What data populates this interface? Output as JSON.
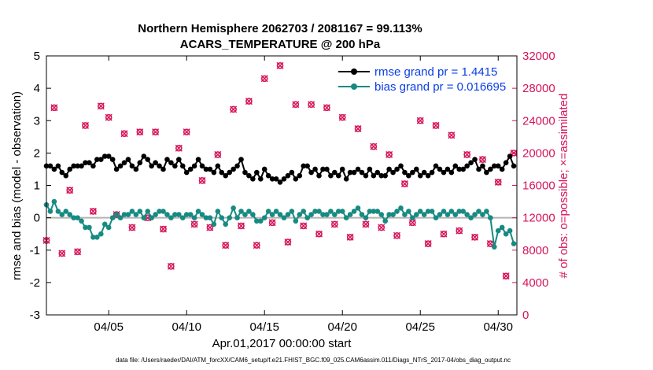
{
  "colors": {
    "rmse": "#000000",
    "bias": "#178a82",
    "obs": "#d6145a",
    "legend_text": "#0a3fe6",
    "zero_line": "#b3b3b3"
  },
  "chart_data": {
    "type": "line",
    "title": [
      "Northern Hemisphere 2062703 / 2081167 = 99.113%",
      "ACARS_TEMPERATURE @ 200 hPa"
    ],
    "xlabel": "Apr.01,2017 00:00:00 start",
    "ylabel": "rmse and bias (model - observation)",
    "y2label": "# of obs: o=possible; ×=assimilated",
    "footer": "data file: /Users/raeder/DAI/ATM_forcXX/CAM6_setup/f.e21.FHIST_BGC.f09_025.CAM6assim.011/Diags_NTrS_2017-04/obs_diag_output.nc",
    "xlim": [
      1.0,
      31.2
    ],
    "ylim": [
      -3,
      5
    ],
    "y2lim": [
      0,
      32000
    ],
    "x_ticks": [
      5,
      10,
      15,
      20,
      25,
      30
    ],
    "x_tick_labels": [
      "04/05",
      "04/10",
      "04/15",
      "04/20",
      "04/25",
      "04/30"
    ],
    "y_ticks": [
      -3,
      -2,
      -1,
      0,
      1,
      2,
      3,
      4,
      5
    ],
    "y2_ticks": [
      0,
      4000,
      8000,
      12000,
      16000,
      20000,
      24000,
      28000,
      32000
    ],
    "y2_tick_labels": [
      "0",
      "4000",
      "8000",
      "12000",
      "16000",
      "20000",
      "24000",
      "28000",
      "32000"
    ],
    "legend": [
      {
        "name": "rmse grand pr = 1.4415",
        "series": "rmse"
      },
      {
        "name": "bias grand pr = 0.016695",
        "series": "bias"
      }
    ],
    "x": [
      1.0,
      1.25,
      1.5,
      1.75,
      2.0,
      2.25,
      2.5,
      2.75,
      3.0,
      3.25,
      3.5,
      3.75,
      4.0,
      4.25,
      4.5,
      4.75,
      5.0,
      5.25,
      5.5,
      5.75,
      6.0,
      6.25,
      6.5,
      6.75,
      7.0,
      7.25,
      7.5,
      7.75,
      8.0,
      8.25,
      8.5,
      8.75,
      9.0,
      9.25,
      9.5,
      9.75,
      10.0,
      10.25,
      10.5,
      10.75,
      11.0,
      11.25,
      11.5,
      11.75,
      12.0,
      12.25,
      12.5,
      12.75,
      13.0,
      13.25,
      13.5,
      13.75,
      14.0,
      14.25,
      14.5,
      14.75,
      15.0,
      15.25,
      15.5,
      15.75,
      16.0,
      16.25,
      16.5,
      16.75,
      17.0,
      17.25,
      17.5,
      17.75,
      18.0,
      18.25,
      18.5,
      18.75,
      19.0,
      19.25,
      19.5,
      19.75,
      20.0,
      20.25,
      20.5,
      20.75,
      21.0,
      21.25,
      21.5,
      21.75,
      22.0,
      22.25,
      22.5,
      22.75,
      23.0,
      23.25,
      23.5,
      23.75,
      24.0,
      24.25,
      24.5,
      24.75,
      25.0,
      25.25,
      25.5,
      25.75,
      26.0,
      26.25,
      26.5,
      26.75,
      27.0,
      27.25,
      27.5,
      27.75,
      28.0,
      28.25,
      28.5,
      28.75,
      29.0,
      29.25,
      29.5,
      29.75,
      30.0,
      30.25,
      30.5,
      30.75,
      31.0
    ],
    "series": [
      {
        "name": "rmse",
        "marker": "filled-circle",
        "values": [
          1.6,
          1.6,
          1.5,
          1.6,
          1.4,
          1.3,
          1.5,
          1.6,
          1.6,
          1.6,
          1.7,
          1.7,
          1.6,
          1.8,
          1.8,
          1.9,
          1.9,
          1.8,
          1.5,
          1.6,
          1.7,
          1.8,
          1.6,
          1.5,
          1.7,
          1.9,
          1.8,
          1.6,
          1.7,
          1.6,
          1.5,
          1.8,
          1.7,
          1.6,
          1.8,
          1.6,
          1.4,
          1.5,
          1.6,
          1.8,
          1.6,
          1.5,
          1.5,
          1.4,
          1.6,
          1.4,
          1.3,
          1.4,
          1.5,
          1.6,
          1.8,
          1.4,
          1.3,
          1.2,
          1.4,
          1.2,
          1.5,
          1.3,
          1.2,
          1.2,
          1.1,
          1.2,
          1.3,
          1.4,
          1.2,
          1.3,
          1.6,
          1.6,
          1.4,
          1.5,
          1.3,
          1.5,
          1.5,
          1.3,
          1.4,
          1.3,
          1.5,
          1.2,
          1.4,
          1.4,
          1.5,
          1.4,
          1.3,
          1.5,
          1.3,
          1.4,
          1.3,
          1.3,
          1.5,
          1.4,
          1.5,
          1.6,
          1.4,
          1.3,
          1.4,
          1.5,
          1.3,
          1.4,
          1.3,
          1.4,
          1.6,
          1.5,
          1.4,
          1.5,
          1.4,
          1.6,
          1.5,
          1.5,
          1.6,
          1.7,
          1.8,
          1.5,
          1.6,
          1.4,
          1.5,
          1.6,
          1.6,
          1.5,
          1.7,
          1.9,
          1.6
        ]
      },
      {
        "name": "bias",
        "marker": "filled-circle",
        "values": [
          0.4,
          0.2,
          0.5,
          0.2,
          0.1,
          0.2,
          0.1,
          0.0,
          0.0,
          -0.1,
          -0.3,
          -0.3,
          -0.6,
          -0.6,
          -0.5,
          -0.2,
          -0.3,
          0.0,
          0.1,
          0.0,
          0.1,
          0.1,
          0.2,
          0.1,
          0.2,
          0.0,
          0.2,
          0.0,
          0.1,
          0.2,
          0.2,
          0.1,
          0.0,
          0.1,
          0.1,
          0.0,
          0.1,
          0.1,
          0.0,
          0.2,
          0.1,
          0.0,
          0.0,
          -0.2,
          0.2,
          0.0,
          -0.2,
          0.0,
          0.3,
          0.0,
          0.2,
          0.1,
          0.2,
          0.1,
          -0.1,
          -0.1,
          0.0,
          0.2,
          0.1,
          0.2,
          0.1,
          0.0,
          0.1,
          0.2,
          -0.1,
          0.1,
          0.2,
          0.0,
          0.1,
          0.2,
          0.2,
          0.1,
          0.1,
          0.2,
          0.1,
          0.2,
          0.2,
          0.0,
          0.1,
          0.2,
          0.3,
          0.1,
          0.0,
          0.2,
          0.2,
          0.2,
          0.1,
          -0.1,
          0.1,
          0.1,
          0.2,
          0.3,
          0.1,
          0.2,
          0.0,
          0.1,
          0.2,
          0.1,
          0.2,
          0.2,
          0.0,
          0.1,
          0.2,
          0.1,
          0.2,
          0.1,
          0.2,
          0.2,
          0.1,
          0.0,
          0.1,
          0.2,
          0.1,
          0.2,
          0.0,
          -0.9,
          -0.4,
          -0.3,
          -0.5,
          -0.4,
          -0.8
        ]
      },
      {
        "name": "obs_count",
        "axis": "right",
        "marker": "circle-and-cross",
        "x": [
          1.0,
          1.5,
          2.0,
          2.5,
          3.0,
          3.5,
          4.0,
          4.5,
          5.0,
          5.5,
          6.0,
          6.5,
          7.0,
          7.5,
          8.0,
          8.5,
          9.0,
          9.5,
          10.0,
          10.5,
          11.0,
          11.5,
          12.0,
          12.5,
          13.0,
          13.5,
          14.0,
          14.5,
          15.0,
          15.5,
          16.0,
          16.5,
          17.0,
          17.5,
          18.0,
          18.5,
          19.0,
          19.5,
          20.0,
          20.5,
          21.0,
          21.5,
          22.0,
          22.5,
          23.0,
          23.5,
          24.0,
          24.5,
          25.0,
          25.5,
          26.0,
          26.5,
          27.0,
          27.5,
          28.0,
          28.5,
          29.0,
          29.5,
          30.0,
          30.5,
          31.0
        ],
        "values": [
          9200,
          25600,
          7600,
          15400,
          7800,
          23400,
          12800,
          25800,
          24400,
          12400,
          22400,
          10800,
          22600,
          12000,
          22600,
          10600,
          6000,
          20600,
          22600,
          11200,
          16600,
          10800,
          19800,
          8600,
          25400,
          11000,
          26400,
          8600,
          29200,
          11400,
          30800,
          9000,
          26000,
          11000,
          26000,
          10000,
          25600,
          11200,
          24400,
          9600,
          23000,
          11200,
          20800,
          10800,
          19800,
          9800,
          16200,
          11400,
          24000,
          8800,
          23400,
          10000,
          22200,
          10400,
          19800,
          9600,
          19200,
          8800,
          16400,
          4800,
          20000
        ]
      }
    ]
  }
}
